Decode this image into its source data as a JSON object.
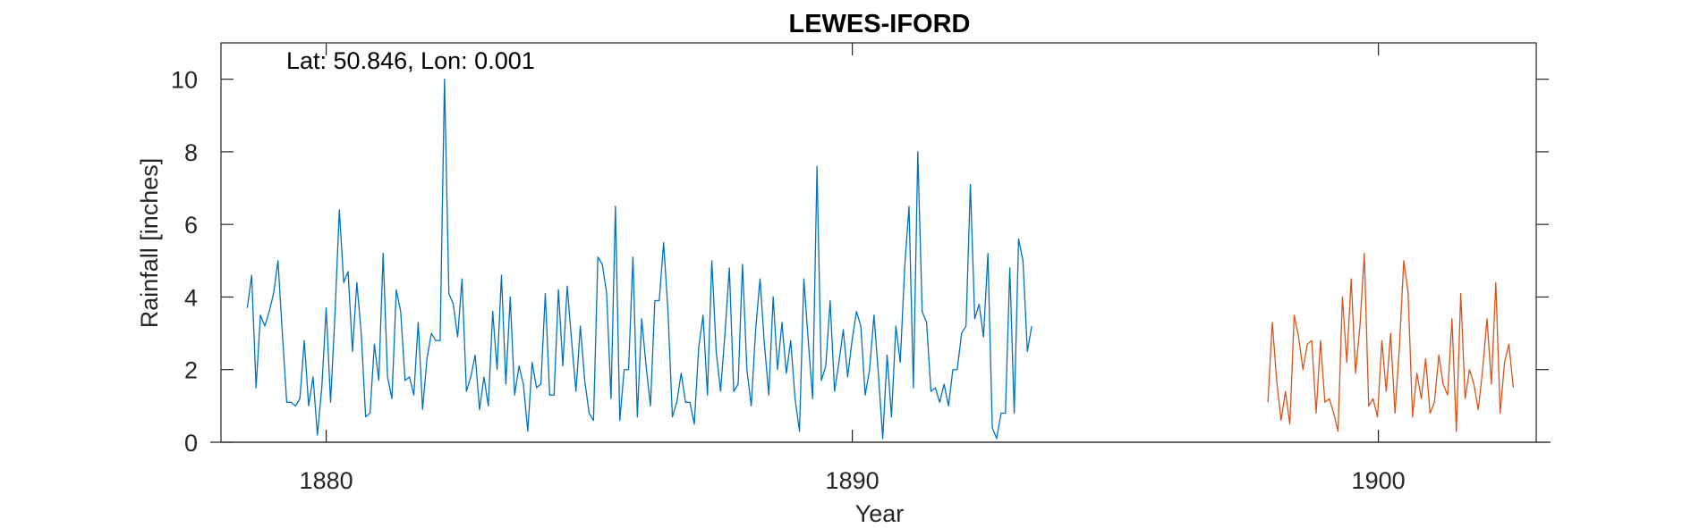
{
  "chart_data": {
    "type": "line",
    "title": "LEWES-IFORD",
    "annotation": "Lat: 50.846, Lon: 0.001",
    "xlabel": "Year",
    "ylabel": "Rainfall [inches]",
    "xlim": [
      1878,
      1903
    ],
    "ylim": [
      0,
      11
    ],
    "xticks": [
      1880,
      1890,
      1900
    ],
    "yticks": [
      0,
      2,
      4,
      6,
      8,
      10
    ],
    "grid": false,
    "legend": "none",
    "colors": {
      "series_1": "#0072BD",
      "series_2": "#D95319",
      "axes": "#262626"
    },
    "series": [
      {
        "x_start": 1878.5,
        "step": 0.0833,
        "values": [
          3.7,
          4.6,
          1.5,
          3.5,
          3.2,
          3.6,
          4.1,
          5.0,
          3.0,
          1.1,
          1.1,
          1.0,
          1.2,
          2.8,
          1.0,
          1.8,
          0.2,
          1.5,
          3.7,
          1.1,
          3.5,
          6.4,
          4.4,
          4.7,
          2.5,
          4.4,
          3.0,
          0.7,
          0.8,
          2.7,
          1.7,
          5.2,
          1.8,
          1.2,
          4.2,
          3.6,
          1.7,
          1.8,
          1.3,
          3.3,
          0.9,
          2.3,
          3.0,
          2.8,
          2.8,
          10.0,
          4.1,
          3.8,
          2.9,
          4.5,
          1.4,
          1.8,
          2.4,
          0.9,
          1.8,
          1.0,
          3.6,
          2.0,
          4.6,
          1.6,
          4.0,
          1.3,
          2.1,
          1.6,
          0.3,
          2.2,
          1.5,
          1.6,
          4.1,
          1.3,
          1.3,
          4.2,
          2.1,
          4.3,
          2.8,
          1.4,
          3.2,
          1.7,
          0.8,
          0.6,
          5.1,
          4.9,
          4.1,
          1.2,
          6.5,
          0.6,
          2.0,
          2.0,
          5.1,
          0.7,
          3.4,
          2.1,
          1.0,
          3.9,
          3.9,
          5.5,
          3.6,
          0.7,
          1.1,
          1.9,
          1.1,
          1.1,
          0.5,
          2.6,
          3.5,
          1.3,
          5.0,
          2.5,
          1.4,
          3.0,
          4.8,
          1.4,
          1.6,
          4.9,
          2.0,
          1.0,
          3.1,
          4.5,
          2.7,
          1.3,
          4.0,
          2.0,
          3.3,
          1.9,
          2.8,
          1.2,
          0.3,
          4.5,
          2.8,
          1.2,
          7.6,
          1.7,
          2.1,
          3.9,
          1.4,
          2.2,
          3.1,
          1.8,
          2.8,
          3.6,
          3.2,
          1.3,
          2.0,
          3.5,
          1.9,
          0.1,
          2.4,
          0.7,
          3.2,
          2.2,
          4.8,
          6.5,
          1.5,
          8.0,
          3.6,
          3.3,
          1.4,
          1.5,
          1.1,
          1.6,
          1.0,
          2.0,
          2.0,
          3.0,
          3.2,
          7.1,
          3.4,
          3.8,
          2.9,
          5.2,
          0.4,
          0.1,
          0.8,
          0.8,
          4.8,
          0.8,
          5.6,
          5.0,
          2.5,
          3.2
        ]
      },
      {
        "x_start": 1897.9,
        "step": 0.0833,
        "values": [
          1.1,
          3.3,
          1.7,
          0.6,
          1.4,
          0.5,
          3.5,
          2.9,
          2.0,
          2.7,
          2.8,
          0.8,
          2.8,
          1.1,
          1.2,
          0.8,
          0.3,
          4.0,
          2.2,
          4.5,
          1.9,
          3.2,
          5.2,
          1.0,
          1.2,
          0.7,
          2.8,
          1.4,
          3.0,
          0.8,
          2.6,
          5.0,
          4.1,
          0.7,
          1.9,
          1.2,
          2.3,
          0.8,
          1.1,
          2.4,
          1.6,
          1.3,
          3.4,
          0.3,
          4.1,
          1.2,
          2.0,
          1.6,
          0.9,
          2.0,
          3.4,
          1.6,
          4.4,
          0.8,
          2.2,
          2.7,
          1.5
        ]
      }
    ]
  }
}
